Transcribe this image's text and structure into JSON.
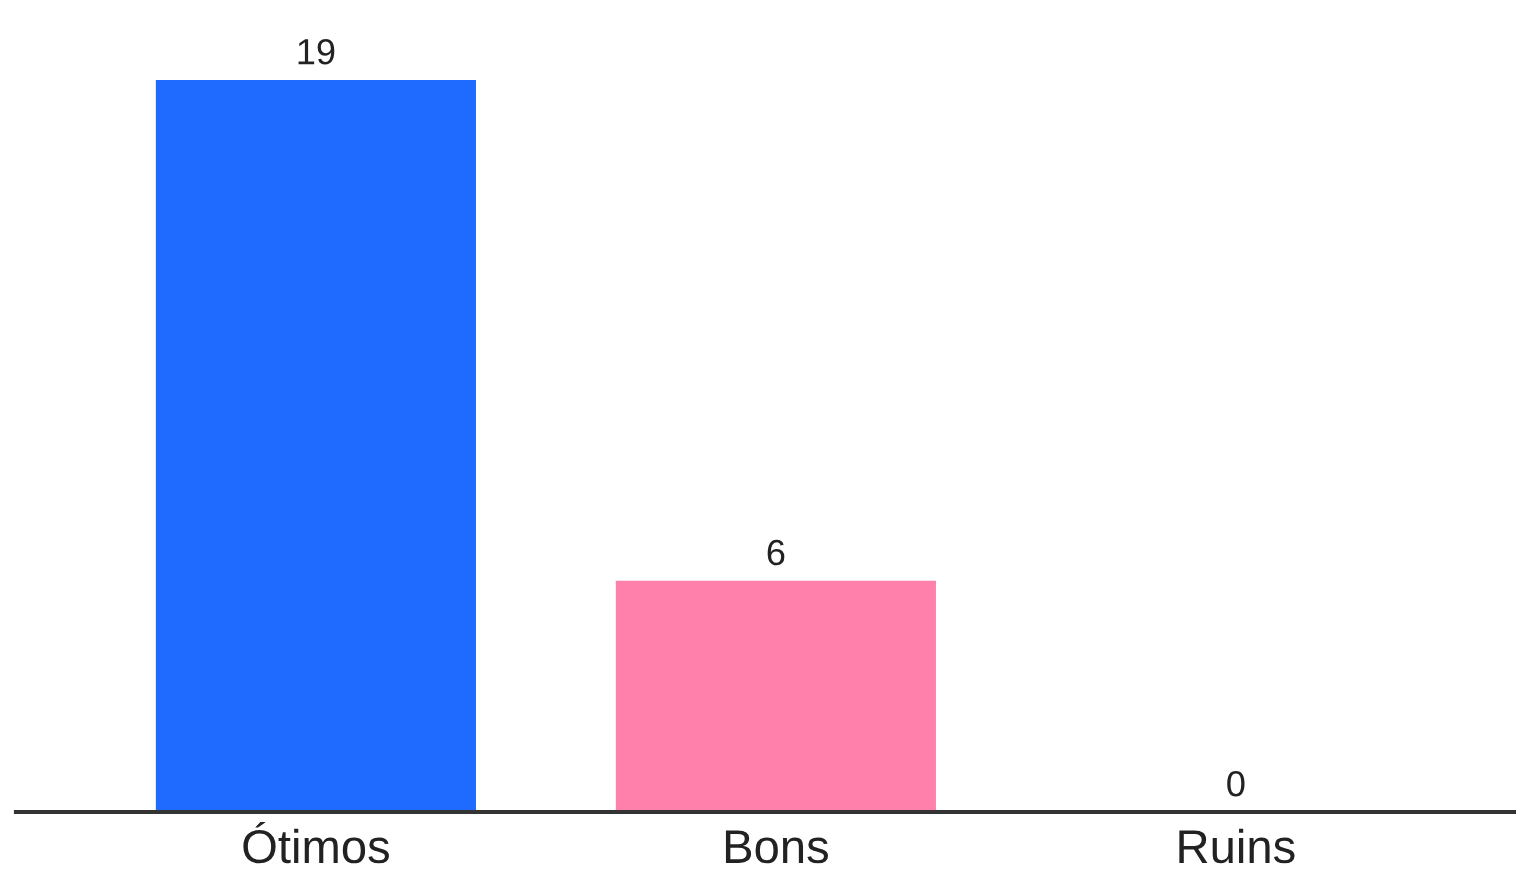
{
  "chart_data": {
    "type": "bar",
    "categories": [
      "Ótimos",
      "Bons",
      "Ruins"
    ],
    "values": [
      19,
      6,
      0
    ],
    "colors": [
      "#1f6bff",
      "#ff80aa",
      "#8a8a8a"
    ],
    "data_labels": true,
    "grid": false,
    "legend": false
  }
}
